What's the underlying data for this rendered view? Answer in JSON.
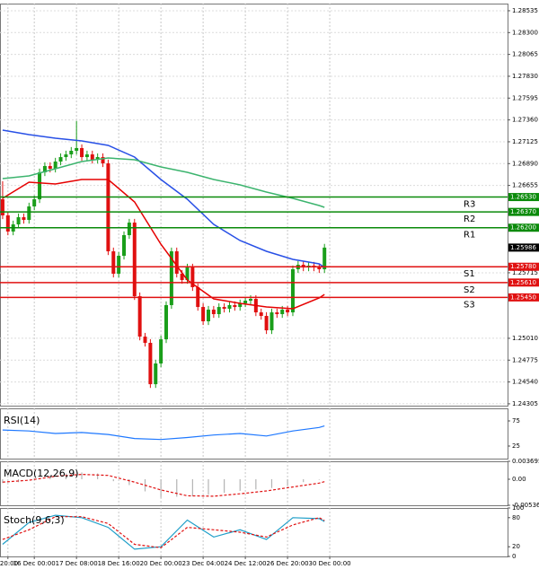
{
  "chart_data": [
    {
      "type": "candlestick",
      "x": [
        0,
        1,
        2,
        3,
        4,
        5,
        6,
        7,
        8,
        9,
        10,
        11,
        12,
        13,
        14,
        15,
        16,
        17,
        18,
        19,
        20,
        21,
        22,
        23,
        24,
        25,
        26,
        27,
        28,
        29,
        30,
        31,
        32,
        33,
        34,
        35,
        36,
        37,
        38,
        39,
        40,
        41,
        42,
        43,
        44,
        45,
        46,
        47,
        48,
        49,
        50,
        51,
        52,
        53,
        54,
        55,
        56,
        57,
        58,
        59,
        60,
        61
      ],
      "open": [
        1.26506,
        1.26333,
        1.26159,
        1.26236,
        1.26313,
        1.26284,
        1.26429,
        1.26506,
        1.26796,
        1.26864,
        1.26835,
        1.26912,
        1.2696,
        1.26989,
        1.27028,
        1.27057,
        1.2696,
        1.26989,
        1.26931,
        1.2696,
        1.26893,
        1.25946,
        1.25705,
        1.25898,
        1.2612,
        1.26255,
        1.25463,
        1.25028,
        1.24961,
        1.24516,
        1.24739,
        1.24999,
        1.25367,
        1.25946,
        1.25705,
        1.25637,
        1.25772,
        1.2556,
        1.25347,
        1.25193,
        1.25318,
        1.2527,
        1.25347,
        1.25328,
        1.25367,
        1.25347,
        1.25386,
        1.25415,
        1.25434,
        1.25289,
        1.25251,
        1.25096,
        1.25289,
        1.2527,
        1.25318,
        1.25289,
        1.25753,
        1.25801,
        1.25772,
        1.25792,
        1.25772,
        1.25753
      ],
      "high": [
        1.267,
        1.26373,
        1.26276,
        1.26353,
        1.26353,
        1.26469,
        1.26546,
        1.26836,
        1.26904,
        1.26904,
        1.26952,
        1.27,
        1.27029,
        1.27068,
        1.2735,
        1.27097,
        1.27029,
        1.27029,
        1.27,
        1.27,
        1.26933,
        1.25986,
        1.25938,
        1.2616,
        1.26295,
        1.26295,
        1.25503,
        1.25068,
        1.25001,
        1.24779,
        1.25039,
        1.25407,
        1.25986,
        1.25986,
        1.25745,
        1.25812,
        1.25812,
        1.256,
        1.25387,
        1.25358,
        1.25358,
        1.25387,
        1.25387,
        1.25407,
        1.25407,
        1.25426,
        1.25455,
        1.25474,
        1.25474,
        1.25329,
        1.25291,
        1.25329,
        1.25329,
        1.25358,
        1.25358,
        1.25793,
        1.25841,
        1.25841,
        1.25832,
        1.25832,
        1.25812,
        1.26026
      ],
      "low": [
        1.26293,
        1.26119,
        1.26119,
        1.26196,
        1.26244,
        1.26244,
        1.26389,
        1.26466,
        1.26756,
        1.26795,
        1.26795,
        1.26872,
        1.2692,
        1.26949,
        1.26988,
        1.2692,
        1.2692,
        1.26891,
        1.26891,
        1.26853,
        1.25906,
        1.25665,
        1.25665,
        1.25858,
        1.2608,
        1.25423,
        1.24988,
        1.24921,
        1.24476,
        1.24476,
        1.24699,
        1.24959,
        1.25327,
        1.25665,
        1.25597,
        1.25597,
        1.2552,
        1.25307,
        1.25153,
        1.25153,
        1.2523,
        1.2523,
        1.25288,
        1.25288,
        1.25307,
        1.25307,
        1.25346,
        1.25375,
        1.25249,
        1.25211,
        1.25056,
        1.25056,
        1.2523,
        1.2523,
        1.25249,
        1.25249,
        1.25713,
        1.25732,
        1.25732,
        1.25732,
        1.25713,
        1.25713
      ],
      "close": [
        1.26333,
        1.26159,
        1.26236,
        1.26313,
        1.26284,
        1.26429,
        1.26506,
        1.26796,
        1.26864,
        1.26835,
        1.26912,
        1.2696,
        1.26989,
        1.27028,
        1.27057,
        1.2696,
        1.26989,
        1.26931,
        1.2696,
        1.26893,
        1.25946,
        1.25705,
        1.25898,
        1.2612,
        1.26255,
        1.25463,
        1.25028,
        1.24961,
        1.24516,
        1.24739,
        1.24999,
        1.25367,
        1.25946,
        1.25705,
        1.25637,
        1.25772,
        1.2556,
        1.25347,
        1.25193,
        1.25318,
        1.2527,
        1.25347,
        1.25328,
        1.25367,
        1.25347,
        1.25386,
        1.25415,
        1.25434,
        1.25289,
        1.25251,
        1.25096,
        1.25289,
        1.2527,
        1.25318,
        1.25289,
        1.25753,
        1.25801,
        1.25772,
        1.25792,
        1.25772,
        1.25753,
        1.25986
      ],
      "up_color": "#1a9e1a",
      "down_color": "#e01010",
      "lines": [
        {
          "color": "#2850e6",
          "x": [
            0,
            5,
            10,
            15,
            20,
            25,
            30,
            35,
            40,
            45,
            50,
            55,
            60,
            61
          ],
          "values": [
            1.2725,
            1.27202,
            1.27163,
            1.27134,
            1.27086,
            1.2696,
            1.26719,
            1.26506,
            1.26236,
            1.26062,
            1.25946,
            1.25859,
            1.25811,
            1.25772
          ]
        },
        {
          "color": "#e60000",
          "x": [
            0,
            5,
            10,
            15,
            20,
            25,
            30,
            35,
            40,
            45,
            50,
            55,
            60,
            61
          ],
          "values": [
            1.26516,
            1.2669,
            1.26671,
            1.26719,
            1.26719,
            1.26477,
            1.26023,
            1.25637,
            1.25434,
            1.25386,
            1.25347,
            1.25328,
            1.25444,
            1.25482
          ]
        },
        {
          "color": "#3cb46e",
          "x": [
            0,
            5,
            10,
            15,
            20,
            25,
            30,
            35,
            40,
            45,
            50,
            55,
            60,
            61
          ],
          "values": [
            1.26729,
            1.26758,
            1.26835,
            1.26912,
            1.26951,
            1.26931,
            1.26854,
            1.26796,
            1.26719,
            1.26661,
            1.26584,
            1.26516,
            1.26439,
            1.2642
          ]
        }
      ],
      "levels": [
        {
          "name": "R3",
          "value": 1.2653,
          "value_label": "1.26530",
          "color": "#0a8a0a"
        },
        {
          "name": "R2",
          "value": 1.2637,
          "value_label": "1.26370",
          "color": "#0a8a0a"
        },
        {
          "name": "R1",
          "value": 1.262,
          "value_label": "1.26200",
          "color": "#0a8a0a"
        },
        {
          "name": "S1",
          "value": 1.2578,
          "value_label": "1.25780",
          "color": "#e01010"
        },
        {
          "name": "S2",
          "value": 1.2561,
          "value_label": "1.25610",
          "color": "#e01010"
        },
        {
          "name": "S3",
          "value": 1.2545,
          "value_label": "1.25450",
          "color": "#e01010"
        }
      ],
      "last_price": 1.25986,
      "ylim": [
        1.24285,
        1.28612
      ],
      "yticks": [
        {
          "value": 1.28535,
          "label": "1.28535"
        },
        {
          "value": 1.283,
          "label": "1.28300"
        },
        {
          "value": 1.28065,
          "label": "1.28065"
        },
        {
          "value": 1.2783,
          "label": "1.27830"
        },
        {
          "value": 1.27595,
          "label": "1.27595"
        },
        {
          "value": 1.2736,
          "label": "1.27360"
        },
        {
          "value": 1.27125,
          "label": "1.27125"
        },
        {
          "value": 1.2689,
          "label": "1.26890"
        },
        {
          "value": 1.26655,
          "label": "1.26655"
        },
        {
          "value": 1.25715,
          "label": "1.25715"
        },
        {
          "value": 1.2501,
          "label": "1.25010"
        },
        {
          "value": 1.24775,
          "label": "1.24775"
        },
        {
          "value": 1.2454,
          "label": "1.24540"
        },
        {
          "value": 1.24305,
          "label": "1.24305"
        }
      ],
      "xlim": [
        -0.5,
        95.7
      ],
      "grid": true
    },
    {
      "type": "line",
      "title": "RSI(14)",
      "ylim": [
        0,
        100
      ],
      "yticks": [
        75,
        25
      ],
      "xlim": [
        -0.5,
        95.7
      ],
      "grid": true,
      "series": [
        {
          "color": "#1e78ff",
          "x": [
            0,
            5,
            10,
            15,
            20,
            25,
            30,
            35,
            40,
            45,
            50,
            55,
            60,
            61
          ],
          "values": [
            57,
            55,
            50,
            52,
            48,
            40,
            38,
            42,
            47,
            50,
            45,
            55,
            62,
            65
          ]
        }
      ]
    },
    {
      "type": "line",
      "title": "MACD(12,26,9)",
      "ylim": [
        -0.005364,
        0.003695
      ],
      "yticks": [
        0.003695,
        {
          "value": 0,
          "label": "0.00"
        },
        -0.005364
      ],
      "xlim": [
        -0.5,
        95.7
      ],
      "grid": true,
      "series": [
        {
          "kind": "histogram",
          "color": "#b4b4b4",
          "x": [
            0,
            3,
            6,
            9,
            12,
            15,
            18,
            21,
            24,
            27,
            30,
            33,
            36,
            39,
            42,
            45,
            48,
            51,
            54,
            57,
            60
          ],
          "values": [
            -0.0008,
            -0.0006,
            0.0002,
            0.0008,
            0.0012,
            0.0014,
            0.0012,
            -0.0004,
            -0.0012,
            -0.0025,
            -0.0038,
            -0.0036,
            -0.0035,
            -0.0032,
            -0.0028,
            -0.0024,
            -0.0021,
            -0.0018,
            -0.0014,
            -0.0006,
            -0.0001
          ]
        },
        {
          "color": "#e01010",
          "dash": true,
          "x": [
            0,
            5,
            10,
            15,
            20,
            25,
            30,
            35,
            40,
            45,
            50,
            55,
            60,
            61
          ],
          "values": [
            -0.0006,
            -0.0002,
            0.0006,
            0.001,
            0.0008,
            -0.0006,
            -0.0022,
            -0.0034,
            -0.0035,
            -0.003,
            -0.0024,
            -0.0016,
            -0.0008,
            -0.0005
          ]
        }
      ]
    },
    {
      "type": "line",
      "title": "Stoch(9,6,3)",
      "ylim": [
        0,
        100
      ],
      "yticks": [
        100,
        80,
        20,
        0
      ],
      "xlim": [
        -0.5,
        95.7
      ],
      "grid": true,
      "series": [
        {
          "color": "#1e9ec8",
          "x": [
            0,
            5,
            10,
            15,
            20,
            25,
            30,
            35,
            40,
            45,
            50,
            55,
            60,
            61
          ],
          "values": [
            25,
            70,
            85,
            80,
            60,
            15,
            20,
            75,
            40,
            55,
            35,
            80,
            78,
            72
          ]
        },
        {
          "color": "#e01010",
          "dash": true,
          "x": [
            0,
            5,
            10,
            15,
            20,
            25,
            30,
            35,
            40,
            45,
            50,
            55,
            60,
            61
          ],
          "values": [
            35,
            55,
            82,
            82,
            68,
            25,
            18,
            60,
            55,
            50,
            40,
            65,
            80,
            74
          ]
        }
      ],
      "xticks": [
        {
          "value": 1,
          "label": "20:00"
        },
        {
          "value": 6,
          "label": "16 Dec 00:00"
        },
        {
          "value": 14,
          "label": "17 Dec 08:00"
        },
        {
          "value": 22,
          "label": "18 Dec 16:00"
        },
        {
          "value": 30,
          "label": "20 Dec 00:00"
        },
        {
          "value": 38,
          "label": "23 Dec 04:00"
        },
        {
          "value": 46,
          "label": "24 Dec 12:00"
        },
        {
          "value": 54,
          "label": "26 Dec 20:00"
        },
        {
          "value": 62,
          "label": "30 Dec 00:00"
        }
      ]
    }
  ]
}
